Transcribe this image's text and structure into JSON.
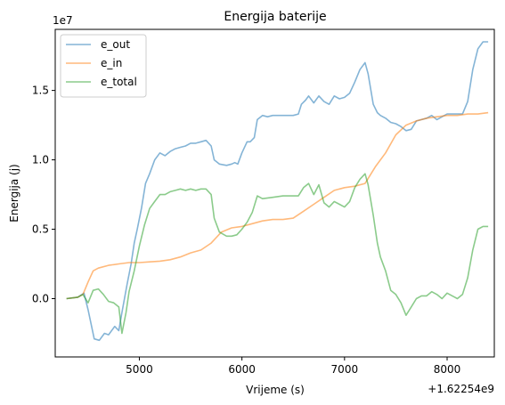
{
  "chart_data": {
    "type": "line",
    "title": "Energija baterije",
    "xlabel": "Vrijeme (s)",
    "ylabel": "Energija (j)",
    "x_offset_label": "+1.62254e9",
    "y_scale_label": "1e7",
    "xlim": [
      4180,
      8460
    ],
    "ylim": [
      -4.2,
      19.4
    ],
    "x_ticks": [
      5000,
      6000,
      7000,
      8000
    ],
    "x_tick_labels": [
      "5000",
      "6000",
      "7000",
      "8000"
    ],
    "y_ticks": [
      0.0,
      5.0,
      10.0,
      15.0
    ],
    "y_tick_labels": [
      "0.0",
      "0.5",
      "1.0",
      "1.5"
    ],
    "grid": false,
    "legend_position": "upper-left",
    "series": [
      {
        "name": "e_out",
        "color": "#1f77b4",
        "points": [
          [
            4290,
            0
          ],
          [
            4400,
            0.1
          ],
          [
            4460,
            0.4
          ],
          [
            4500,
            -0.8
          ],
          [
            4560,
            -2.9
          ],
          [
            4610,
            -3.0
          ],
          [
            4660,
            -2.5
          ],
          [
            4700,
            -2.6
          ],
          [
            4760,
            -2.0
          ],
          [
            4800,
            -2.3
          ],
          [
            4830,
            -1.0
          ],
          [
            4880,
            1.0
          ],
          [
            4920,
            2.5
          ],
          [
            4950,
            4.0
          ],
          [
            4980,
            5.0
          ],
          [
            5020,
            6.5
          ],
          [
            5060,
            8.3
          ],
          [
            5100,
            9.0
          ],
          [
            5150,
            10.0
          ],
          [
            5200,
            10.5
          ],
          [
            5250,
            10.3
          ],
          [
            5300,
            10.6
          ],
          [
            5350,
            10.8
          ],
          [
            5400,
            10.9
          ],
          [
            5450,
            11.0
          ],
          [
            5500,
            11.2
          ],
          [
            5550,
            11.2
          ],
          [
            5600,
            11.3
          ],
          [
            5650,
            11.4
          ],
          [
            5700,
            11.0
          ],
          [
            5730,
            10.0
          ],
          [
            5780,
            9.7
          ],
          [
            5850,
            9.6
          ],
          [
            5900,
            9.7
          ],
          [
            5930,
            9.8
          ],
          [
            5960,
            9.7
          ],
          [
            6000,
            10.5
          ],
          [
            6050,
            11.3
          ],
          [
            6080,
            11.3
          ],
          [
            6120,
            11.6
          ],
          [
            6150,
            12.9
          ],
          [
            6200,
            13.2
          ],
          [
            6250,
            13.1
          ],
          [
            6300,
            13.2
          ],
          [
            6400,
            13.2
          ],
          [
            6500,
            13.2
          ],
          [
            6550,
            13.3
          ],
          [
            6580,
            14.0
          ],
          [
            6620,
            14.3
          ],
          [
            6650,
            14.6
          ],
          [
            6700,
            14.1
          ],
          [
            6750,
            14.6
          ],
          [
            6800,
            14.2
          ],
          [
            6850,
            14.0
          ],
          [
            6900,
            14.6
          ],
          [
            6950,
            14.4
          ],
          [
            7000,
            14.5
          ],
          [
            7050,
            14.8
          ],
          [
            7100,
            15.6
          ],
          [
            7150,
            16.5
          ],
          [
            7200,
            17.0
          ],
          [
            7230,
            16.2
          ],
          [
            7280,
            14.0
          ],
          [
            7320,
            13.4
          ],
          [
            7350,
            13.2
          ],
          [
            7400,
            13.0
          ],
          [
            7450,
            12.7
          ],
          [
            7500,
            12.6
          ],
          [
            7550,
            12.4
          ],
          [
            7600,
            12.1
          ],
          [
            7650,
            12.2
          ],
          [
            7700,
            12.8
          ],
          [
            7750,
            12.9
          ],
          [
            7800,
            13.0
          ],
          [
            7850,
            13.2
          ],
          [
            7900,
            12.9
          ],
          [
            7950,
            13.1
          ],
          [
            8000,
            13.3
          ],
          [
            8050,
            13.3
          ],
          [
            8100,
            13.3
          ],
          [
            8150,
            13.3
          ],
          [
            8200,
            14.2
          ],
          [
            8250,
            16.5
          ],
          [
            8300,
            18.0
          ],
          [
            8350,
            18.5
          ],
          [
            8400,
            18.5
          ]
        ]
      },
      {
        "name": "e_in",
        "color": "#ff7f0e",
        "points": [
          [
            4290,
            0
          ],
          [
            4400,
            0.1
          ],
          [
            4450,
            0.3
          ],
          [
            4500,
            1.2
          ],
          [
            4550,
            2.0
          ],
          [
            4600,
            2.2
          ],
          [
            4700,
            2.4
          ],
          [
            4800,
            2.5
          ],
          [
            4900,
            2.6
          ],
          [
            5000,
            2.6
          ],
          [
            5100,
            2.65
          ],
          [
            5200,
            2.7
          ],
          [
            5300,
            2.8
          ],
          [
            5400,
            3.0
          ],
          [
            5500,
            3.3
          ],
          [
            5600,
            3.5
          ],
          [
            5700,
            4.0
          ],
          [
            5800,
            4.8
          ],
          [
            5900,
            5.1
          ],
          [
            6000,
            5.2
          ],
          [
            6100,
            5.4
          ],
          [
            6200,
            5.6
          ],
          [
            6300,
            5.7
          ],
          [
            6400,
            5.7
          ],
          [
            6500,
            5.8
          ],
          [
            6600,
            6.3
          ],
          [
            6700,
            6.8
          ],
          [
            6800,
            7.3
          ],
          [
            6900,
            7.8
          ],
          [
            7000,
            8.0
          ],
          [
            7100,
            8.1
          ],
          [
            7200,
            8.3
          ],
          [
            7300,
            9.5
          ],
          [
            7400,
            10.5
          ],
          [
            7500,
            11.8
          ],
          [
            7600,
            12.5
          ],
          [
            7700,
            12.8
          ],
          [
            7800,
            13.0
          ],
          [
            7900,
            13.1
          ],
          [
            8000,
            13.2
          ],
          [
            8100,
            13.2
          ],
          [
            8200,
            13.3
          ],
          [
            8300,
            13.3
          ],
          [
            8400,
            13.4
          ]
        ]
      },
      {
        "name": "e_total",
        "color": "#2ca02c",
        "points": [
          [
            4290,
            0
          ],
          [
            4400,
            0.1
          ],
          [
            4450,
            0.3
          ],
          [
            4500,
            -0.3
          ],
          [
            4550,
            0.6
          ],
          [
            4600,
            0.7
          ],
          [
            4650,
            0.3
          ],
          [
            4700,
            -0.2
          ],
          [
            4750,
            -0.3
          ],
          [
            4800,
            -0.6
          ],
          [
            4830,
            -2.5
          ],
          [
            4870,
            -1.0
          ],
          [
            4900,
            0.5
          ],
          [
            4950,
            2.0
          ],
          [
            5000,
            3.8
          ],
          [
            5050,
            5.3
          ],
          [
            5100,
            6.5
          ],
          [
            5150,
            7.0
          ],
          [
            5200,
            7.5
          ],
          [
            5250,
            7.5
          ],
          [
            5300,
            7.7
          ],
          [
            5350,
            7.8
          ],
          [
            5400,
            7.9
          ],
          [
            5450,
            7.8
          ],
          [
            5500,
            7.9
          ],
          [
            5550,
            7.8
          ],
          [
            5600,
            7.9
          ],
          [
            5650,
            7.9
          ],
          [
            5700,
            7.5
          ],
          [
            5730,
            5.8
          ],
          [
            5780,
            4.8
          ],
          [
            5850,
            4.5
          ],
          [
            5900,
            4.5
          ],
          [
            5950,
            4.6
          ],
          [
            6000,
            5.0
          ],
          [
            6050,
            5.5
          ],
          [
            6100,
            6.2
          ],
          [
            6150,
            7.4
          ],
          [
            6200,
            7.2
          ],
          [
            6300,
            7.3
          ],
          [
            6400,
            7.4
          ],
          [
            6500,
            7.4
          ],
          [
            6550,
            7.4
          ],
          [
            6600,
            8.0
          ],
          [
            6650,
            8.3
          ],
          [
            6700,
            7.5
          ],
          [
            6750,
            8.2
          ],
          [
            6800,
            6.9
          ],
          [
            6850,
            6.6
          ],
          [
            6900,
            7.0
          ],
          [
            6950,
            6.8
          ],
          [
            7000,
            6.6
          ],
          [
            7050,
            7.0
          ],
          [
            7100,
            8.0
          ],
          [
            7150,
            8.6
          ],
          [
            7200,
            9.0
          ],
          [
            7230,
            8.2
          ],
          [
            7280,
            6.0
          ],
          [
            7320,
            4.0
          ],
          [
            7350,
            3.0
          ],
          [
            7400,
            2.0
          ],
          [
            7450,
            0.6
          ],
          [
            7500,
            0.3
          ],
          [
            7550,
            -0.3
          ],
          [
            7600,
            -1.2
          ],
          [
            7650,
            -0.6
          ],
          [
            7700,
            0
          ],
          [
            7750,
            0.2
          ],
          [
            7800,
            0.2
          ],
          [
            7850,
            0.5
          ],
          [
            7900,
            0.3
          ],
          [
            7950,
            0
          ],
          [
            8000,
            0.4
          ],
          [
            8050,
            0.2
          ],
          [
            8100,
            0
          ],
          [
            8150,
            0.3
          ],
          [
            8200,
            1.5
          ],
          [
            8250,
            3.5
          ],
          [
            8300,
            5.0
          ],
          [
            8350,
            5.2
          ],
          [
            8400,
            5.2
          ]
        ]
      }
    ]
  }
}
